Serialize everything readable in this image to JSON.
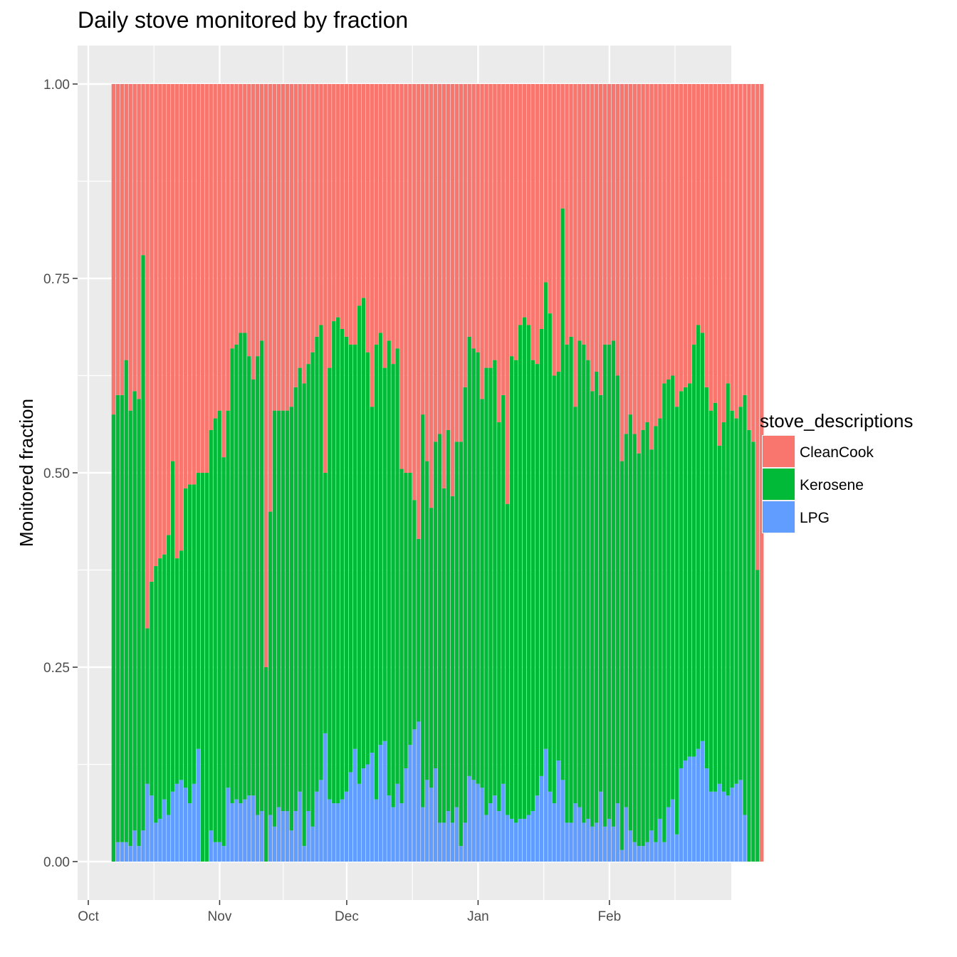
{
  "chart_data": {
    "type": "bar",
    "stacked": true,
    "title": "Daily stove monitored by fraction",
    "xlabel": "",
    "ylabel": "Monitored fraction",
    "x_start_date": "2016-10-07",
    "x_tick_labels": [
      {
        "label": "Oct",
        "date": "2016-10-01"
      },
      {
        "label": "Nov",
        "date": "2016-11-01"
      },
      {
        "label": "Dec",
        "date": "2016-12-01"
      },
      {
        "label": "Jan",
        "date": "2017-01-01"
      },
      {
        "label": "Feb",
        "date": "2017-02-01"
      }
    ],
    "y_ticks": [
      {
        "value": 0,
        "label": "0.00"
      },
      {
        "value": 0.25,
        "label": "0.25"
      },
      {
        "value": 0.5,
        "label": "0.50"
      },
      {
        "value": 0.75,
        "label": "0.75"
      },
      {
        "value": 1,
        "label": "1.00"
      }
    ],
    "ylim": [
      -0.05,
      1.05
    ],
    "grid": true,
    "legend": {
      "title": "stove_descriptions",
      "position": "right",
      "entries": [
        {
          "name": "CleanCook",
          "color": "#F8766D"
        },
        {
          "name": "Kerosene",
          "color": "#00BA38"
        },
        {
          "name": "LPG",
          "color": "#619CFF"
        }
      ]
    },
    "series_stack_order": [
      "LPG",
      "Kerosene",
      "CleanCook"
    ],
    "lpg": [
      0.0,
      0.025,
      0.025,
      0.025,
      0.02,
      0.04,
      0.02,
      0.04,
      0.1,
      0.085,
      0.05,
      0.055,
      0.08,
      0.06,
      0.09,
      0.1,
      0.105,
      0.095,
      0.075,
      0.1,
      0.145,
      0.0,
      0.0,
      0.04,
      0.025,
      0.025,
      0.02,
      0.095,
      0.075,
      0.08,
      0.075,
      0.08,
      0.085,
      0.085,
      0.06,
      0.065,
      0.0,
      0.06,
      0.045,
      0.07,
      0.065,
      0.065,
      0.04,
      0.065,
      0.09,
      0.02,
      0.065,
      0.045,
      0.09,
      0.105,
      0.165,
      0.08,
      0.075,
      0.075,
      0.08,
      0.09,
      0.115,
      0.145,
      0.1,
      0.12,
      0.125,
      0.14,
      0.08,
      0.15,
      0.155,
      0.085,
      0.07,
      0.1,
      0.075,
      0.12,
      0.15,
      0.17,
      0.18,
      0.07,
      0.105,
      0.095,
      0.12,
      0.05,
      0.05,
      0.065,
      0.05,
      0.07,
      0.02,
      0.05,
      0.11,
      0.105,
      0.1,
      0.095,
      0.06,
      0.075,
      0.085,
      0.065,
      0.1,
      0.06,
      0.055,
      0.05,
      0.055,
      0.055,
      0.06,
      0.065,
      0.085,
      0.11,
      0.145,
      0.09,
      0.075,
      0.13,
      0.105,
      0.05,
      0.05,
      0.075,
      0.07,
      0.05,
      0.055,
      0.045,
      0.05,
      0.09,
      0.045,
      0.055,
      0.045,
      0.075,
      0.015,
      0.07,
      0.04,
      0.025,
      0.02,
      0.02,
      0.025,
      0.04,
      0.025,
      0.055,
      0.025,
      0.07,
      0.08,
      0.035,
      0.12,
      0.13,
      0.135,
      0.135,
      0.145,
      0.155,
      0.12,
      0.09,
      0.09,
      0.1,
      0.09,
      0.085,
      0.095,
      0.1,
      0.105,
      0.06,
      0,
      0,
      0,
      0
    ],
    "kerosene": [
      0.575,
      0.575,
      0.575,
      0.62,
      0.56,
      0.565,
      0.575,
      0.74,
      0.2,
      0.275,
      0.33,
      0.335,
      0.315,
      0.36,
      0.425,
      0.29,
      0.295,
      0.385,
      0.41,
      0.385,
      0.355,
      0.5,
      0.5,
      0.515,
      0.545,
      0.555,
      0.5,
      0.485,
      0.585,
      0.585,
      0.605,
      0.6,
      0.565,
      0.535,
      0.59,
      0.605,
      0.25,
      0.39,
      0.535,
      0.51,
      0.515,
      0.515,
      0.545,
      0.545,
      0.545,
      0.595,
      0.575,
      0.61,
      0.585,
      0.585,
      0.335,
      0.555,
      0.62,
      0.625,
      0.605,
      0.585,
      0.55,
      0.52,
      0.615,
      0.605,
      0.53,
      0.445,
      0.585,
      0.53,
      0.48,
      0.585,
      0.57,
      0.56,
      0.43,
      0.38,
      0.35,
      0.295,
      0.235,
      0.505,
      0.41,
      0.36,
      0.42,
      0.5,
      0.43,
      0.49,
      0.42,
      0.47,
      0.52,
      0.56,
      0.565,
      0.555,
      0.555,
      0.5,
      0.575,
      0.56,
      0.56,
      0.5,
      0.5,
      0.4,
      0.595,
      0.595,
      0.635,
      0.645,
      0.63,
      0.58,
      0.555,
      0.575,
      0.6,
      0.615,
      0.55,
      0.5,
      0.735,
      0.615,
      0.625,
      0.51,
      0.6,
      0.615,
      0.59,
      0.56,
      0.58,
      0.51,
      0.62,
      0.61,
      0.625,
      0.55,
      0.5,
      0.48,
      0.535,
      0.525,
      0.505,
      0.535,
      0.54,
      0.49,
      0.535,
      0.515,
      0.59,
      0.55,
      0.545,
      0.55,
      0.485,
      0.48,
      0.48,
      0.53,
      0.545,
      0.525,
      0.49,
      0.49,
      0.5,
      0.435,
      0.475,
      0.53,
      0.485,
      0.47,
      0.48,
      0.54,
      0.555,
      0.54,
      0.375,
      0,
      0,
      0,
      0
    ]
  }
}
